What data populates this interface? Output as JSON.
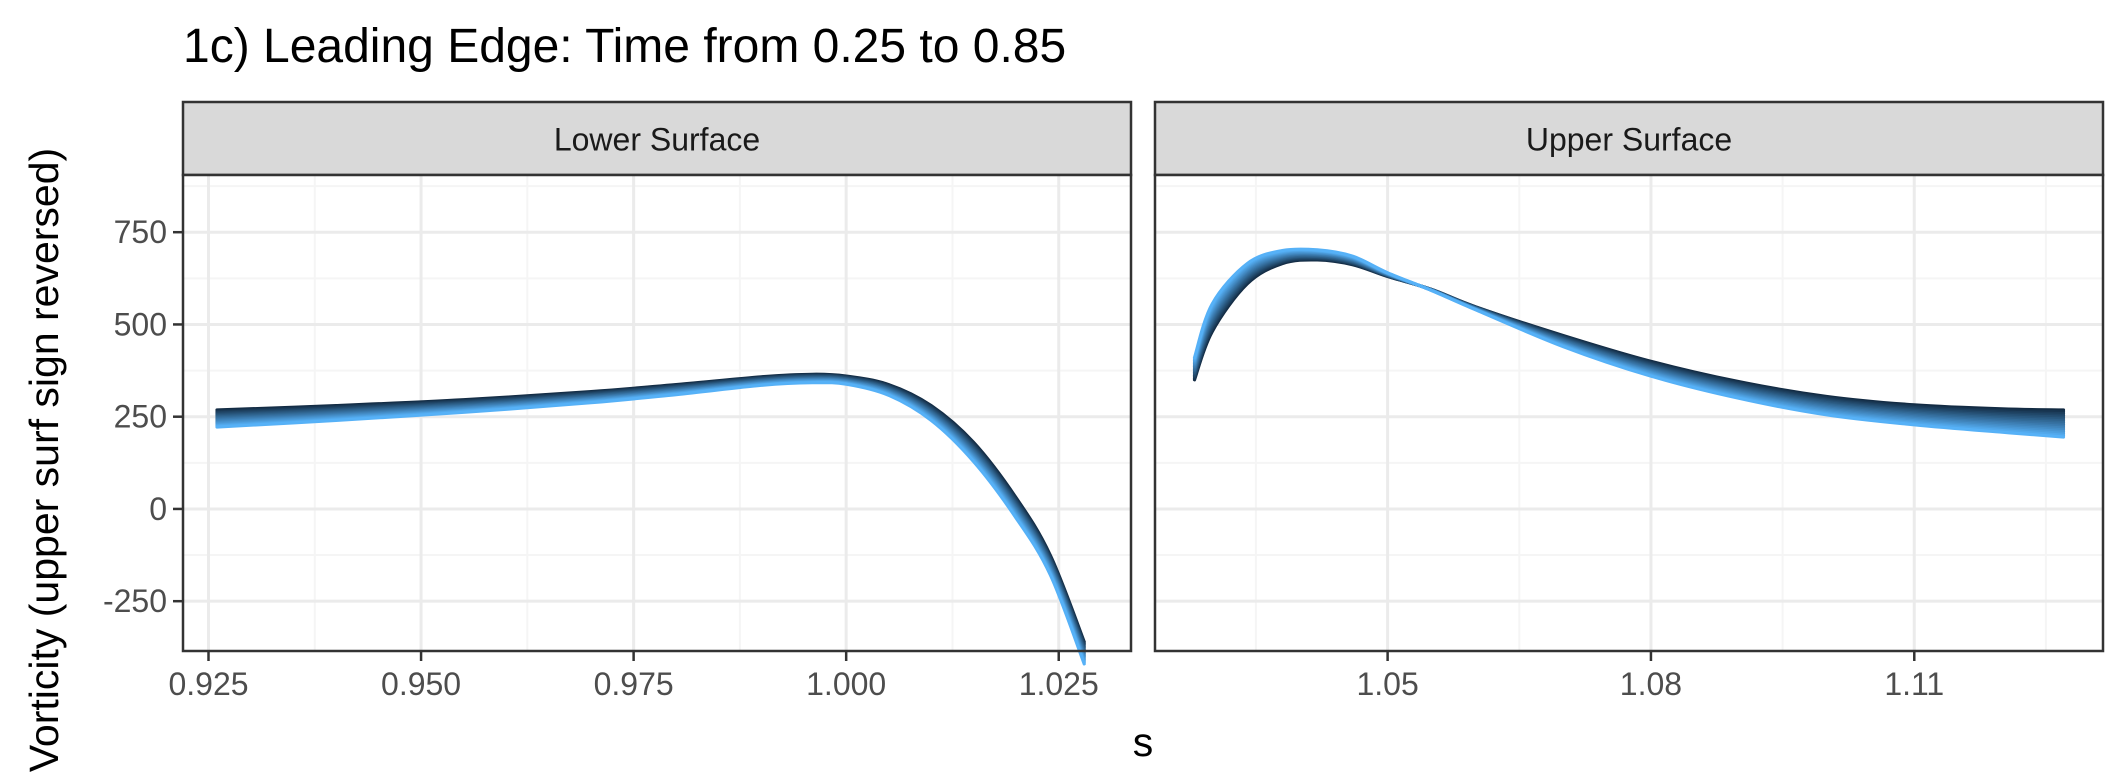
{
  "chart_data": {
    "type": "line",
    "title": "1c) Leading Edge: Time from 0.25 to 0.85",
    "xlabel": "s",
    "ylabel": "Vorticity (upper surf sign reversed)",
    "ylim": [
      -385,
      905
    ],
    "yticks": [
      -250,
      0,
      250,
      500,
      750
    ],
    "grid": true,
    "legend": "none",
    "colors": {
      "first_time": "#132B43",
      "last_time": "#56B1F7",
      "strip_fill": "#D9D9D9",
      "grid_major": "#EBEBEB",
      "grid_minor": "#F5F5F5",
      "axis_text": "#4D4D4D"
    },
    "panels": [
      {
        "strip": "Lower Surface",
        "xlim": [
          0.922,
          1.0335
        ],
        "xticks": [
          0.925,
          0.95,
          0.975,
          1.0,
          1.025
        ],
        "xtick_labels": [
          "0.925",
          "0.950",
          "0.975",
          "1.000",
          "1.025"
        ],
        "curve_first": {
          "x": [
            0.926,
            0.94,
            0.955,
            0.97,
            0.98,
            0.99,
            0.996,
            1.0,
            1.005,
            1.01,
            1.015,
            1.02,
            1.024,
            1.028
          ],
          "y": [
            268,
            280,
            296,
            318,
            337,
            358,
            365,
            360,
            337,
            280,
            180,
            30,
            -125,
            -360
          ]
        },
        "curve_last": {
          "x": [
            0.926,
            0.94,
            0.955,
            0.97,
            0.98,
            0.99,
            0.996,
            1.0,
            1.005,
            1.01,
            1.015,
            1.02,
            1.024,
            1.028
          ],
          "y": [
            222,
            240,
            262,
            288,
            310,
            335,
            342,
            338,
            308,
            240,
            128,
            -25,
            -178,
            -420
          ]
        }
      },
      {
        "strip": "Upper Surface",
        "xlim": [
          1.0235,
          1.1315
        ],
        "xticks": [
          1.05,
          1.08,
          1.11
        ],
        "xtick_labels": [
          "1.05",
          "1.08",
          "1.11"
        ],
        "curve_first": {
          "x": [
            1.028,
            1.03,
            1.034,
            1.038,
            1.042,
            1.046,
            1.05,
            1.055,
            1.06,
            1.07,
            1.08,
            1.09,
            1.1,
            1.11,
            1.12,
            1.127
          ],
          "y": [
            350,
            480,
            610,
            665,
            675,
            662,
            630,
            595,
            548,
            470,
            400,
            345,
            305,
            282,
            271,
            268
          ]
        },
        "curve_last": {
          "x": [
            1.028,
            1.03,
            1.034,
            1.038,
            1.042,
            1.046,
            1.05,
            1.055,
            1.06,
            1.07,
            1.08,
            1.09,
            1.1,
            1.11,
            1.12,
            1.127
          ],
          "y": [
            410,
            555,
            665,
            700,
            702,
            685,
            640,
            592,
            540,
            440,
            360,
            300,
            255,
            228,
            208,
            195
          ]
        }
      }
    ],
    "n_time_curves": 16
  }
}
